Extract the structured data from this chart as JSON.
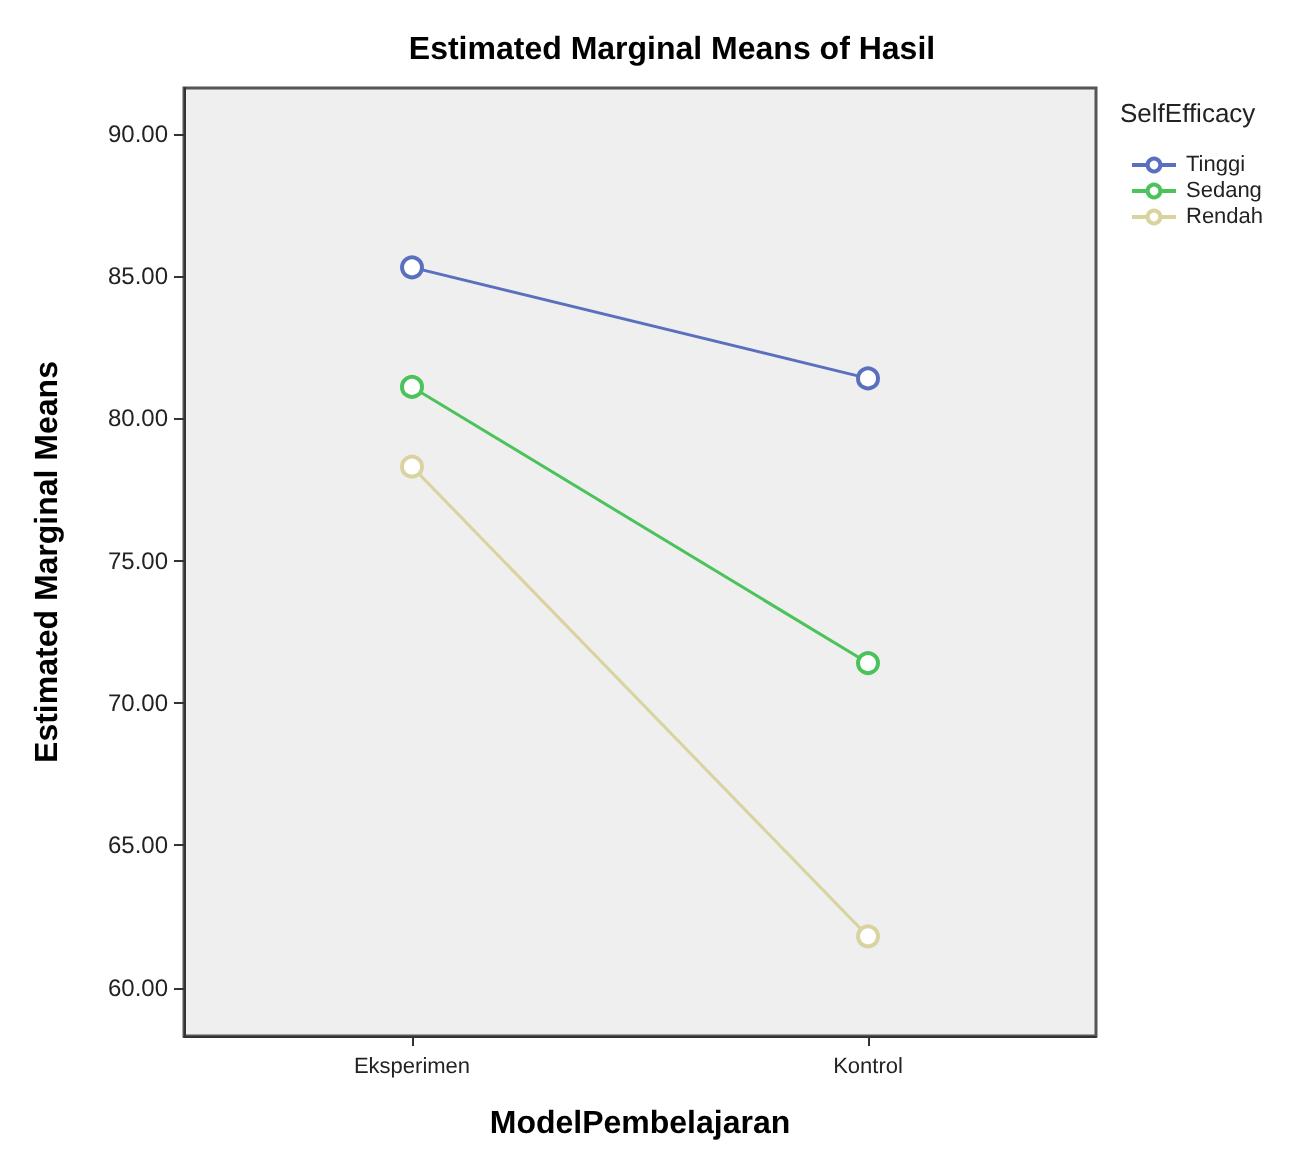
{
  "chart_data": {
    "type": "line",
    "title": "Estimated Marginal Means of Hasil",
    "xlabel": "ModelPembelajaran",
    "ylabel": "Estimated Marginal Means",
    "legend_title": "SelfEfficacy",
    "categories": [
      "Eksperimen",
      "Kontrol"
    ],
    "series": [
      {
        "name": "Tinggi",
        "color": "#5b6fbf",
        "values": [
          85.3,
          81.4
        ]
      },
      {
        "name": "Sedang",
        "color": "#4cc35a",
        "values": [
          81.1,
          71.4
        ]
      },
      {
        "name": "Rendah",
        "color": "#d9d3a0",
        "values": [
          78.3,
          61.8
        ]
      }
    ],
    "ylim": [
      58.3,
      91.6
    ],
    "yticks": [
      {
        "value": 60,
        "label": "60.00"
      },
      {
        "value": 65,
        "label": "65.00"
      },
      {
        "value": 70,
        "label": "70.00"
      },
      {
        "value": 75,
        "label": "75.00"
      },
      {
        "value": 80,
        "label": "80.00"
      },
      {
        "value": 85,
        "label": "85.00"
      },
      {
        "value": 90,
        "label": "90.00"
      }
    ],
    "grid": false,
    "legend": "right",
    "marker": "circle",
    "line_style": "solid"
  }
}
